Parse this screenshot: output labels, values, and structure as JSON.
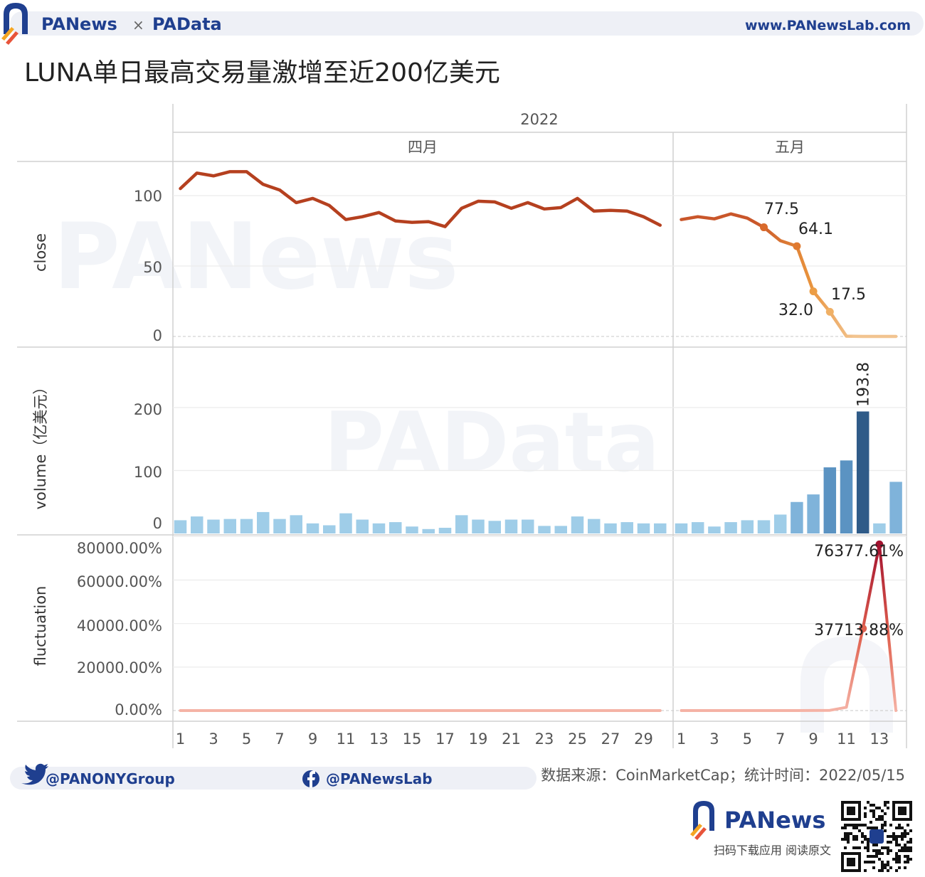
{
  "header": {
    "brand_left": "PANews",
    "brand_cross": "×",
    "brand_right": "PAData",
    "website": "www.PANewsLab.com"
  },
  "title": "LUNA单日最高交易量激增至近200亿美元",
  "watermarks": {
    "top": "PANews",
    "middle": "PAData"
  },
  "axes": {
    "year": "2022",
    "months": [
      "四月",
      "五月"
    ],
    "xticks_april": [
      "1",
      "3",
      "5",
      "7",
      "9",
      "11",
      "13",
      "15",
      "17",
      "19",
      "21",
      "23",
      "25",
      "27",
      "29"
    ],
    "xticks_may": [
      "1",
      "3",
      "5",
      "7",
      "9",
      "11",
      "13"
    ]
  },
  "footer": {
    "twitter": "@PANONYGroup",
    "facebook": "@PANewsLab",
    "source": "数据来源：CoinMarketCap；统计时间：2022/05/15",
    "brand": "PANews",
    "qr_caption": "扫码下载应用  阅读原文"
  },
  "colors": {
    "close_april": "#b5401f",
    "close_may_start": "#c9562a",
    "close_may_end": "#f2c490",
    "volume_light": "#9fcde8",
    "volume_mid": "#5b93c2",
    "volume_dark": "#2f5b88",
    "fluct_base": "#f5b3a6",
    "fluct_peak": "#a3122f",
    "grid": "#ececec",
    "zero_line": "#c8c8c8"
  },
  "chart_data": [
    {
      "type": "line",
      "ylabel": "close",
      "yticks": [
        "0",
        "50",
        "100"
      ],
      "ylim": [
        0,
        120
      ],
      "grid": true,
      "x_april": [
        1,
        2,
        3,
        4,
        5,
        6,
        7,
        8,
        9,
        10,
        11,
        12,
        13,
        14,
        15,
        16,
        17,
        18,
        19,
        20,
        21,
        22,
        23,
        24,
        25,
        26,
        27,
        28,
        29,
        30
      ],
      "values_april": [
        105,
        116,
        114,
        117,
        117,
        108,
        104,
        95,
        98,
        93,
        83,
        85,
        88,
        82,
        81,
        81.5,
        78,
        91,
        96,
        95.5,
        91,
        95,
        90.5,
        91.5,
        98,
        89,
        89.5,
        89,
        85,
        79
      ],
      "x_may": [
        1,
        2,
        3,
        4,
        5,
        6,
        7,
        8,
        9,
        10,
        11,
        12,
        13,
        14
      ],
      "values_may": [
        83,
        85,
        83.5,
        87,
        84,
        77.5,
        68,
        64.1,
        32.0,
        17.5,
        0.2,
        0.01,
        0.01,
        0.01
      ],
      "data_labels": [
        {
          "x": 6,
          "value": "77.5"
        },
        {
          "x": 8,
          "value": "64.1"
        },
        {
          "x": 9,
          "value": "32.0"
        },
        {
          "x": 10,
          "value": "17.5"
        }
      ]
    },
    {
      "type": "bar",
      "ylabel": "volume（亿美元）",
      "yticks": [
        "0",
        "100",
        "200"
      ],
      "ylim": [
        0,
        230
      ],
      "grid": true,
      "x_april": [
        1,
        2,
        3,
        4,
        5,
        6,
        7,
        8,
        9,
        10,
        11,
        12,
        13,
        14,
        15,
        16,
        17,
        18,
        19,
        20,
        21,
        22,
        23,
        24,
        25,
        26,
        27,
        28,
        29,
        30
      ],
      "values_april": [
        21,
        27,
        22,
        23,
        23,
        34,
        23,
        29,
        16,
        13,
        32,
        22,
        16,
        18,
        11,
        7,
        9,
        29,
        22,
        20,
        22,
        22,
        12,
        12,
        27,
        23,
        16,
        18,
        16,
        16
      ],
      "x_may": [
        1,
        2,
        3,
        4,
        5,
        6,
        7,
        8,
        9,
        10,
        11,
        12,
        13,
        14
      ],
      "values_may": [
        16,
        18,
        11,
        18,
        21,
        21,
        30,
        50,
        62,
        105,
        116,
        193.8,
        16,
        82
      ],
      "data_labels": [
        {
          "x": 12,
          "value": "193.8"
        }
      ]
    },
    {
      "type": "line",
      "ylabel": "fluctuation",
      "yticks": [
        "0.00%",
        "20000.00%",
        "40000.00%",
        "60000.00%",
        "80000.00%"
      ],
      "ylim": [
        0,
        82000
      ],
      "grid": true,
      "x_april": [
        1,
        2,
        3,
        4,
        5,
        6,
        7,
        8,
        9,
        10,
        11,
        12,
        13,
        14,
        15,
        16,
        17,
        18,
        19,
        20,
        21,
        22,
        23,
        24,
        25,
        26,
        27,
        28,
        29,
        30
      ],
      "values_april": [
        0,
        0,
        0,
        0,
        0,
        0,
        0,
        0,
        0,
        0,
        0,
        0,
        0,
        0,
        0,
        0,
        0,
        0,
        0,
        0,
        0,
        0,
        0,
        0,
        0,
        0,
        0,
        0,
        0,
        0
      ],
      "x_may": [
        1,
        2,
        3,
        4,
        5,
        6,
        7,
        8,
        9,
        10,
        11,
        12,
        13,
        14
      ],
      "values_may": [
        0,
        0,
        0,
        0,
        0,
        0,
        0,
        0,
        50,
        100,
        1500,
        37713.88,
        76377.61,
        0
      ],
      "data_labels": [
        {
          "x": 12,
          "value": "37713.88%"
        },
        {
          "x": 13,
          "value": "76377.61%"
        }
      ]
    }
  ]
}
